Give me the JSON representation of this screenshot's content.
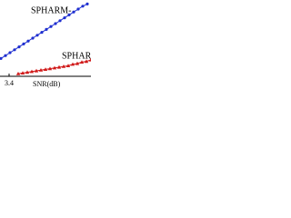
{
  "chart_data": {
    "type": "line",
    "annotations": [
      "SPHARM-",
      "SPHARM",
      "SNR(dB)"
    ],
    "xlim": [
      2.4,
      12.4
    ],
    "xticks": [
      3.4
    ],
    "ylim": [
      0,
      100
    ],
    "series": [
      {
        "name": "SPHARM-",
        "color": "#1f2fd0",
        "marker": "circle",
        "x": [
          2.5,
          3.0,
          3.5,
          4.0,
          4.5,
          5.0,
          5.5,
          6.0,
          6.5,
          7.0,
          7.5,
          8.0,
          8.5,
          9.0,
          9.5,
          10.0,
          10.5,
          11.0,
          11.5,
          12.0
        ],
        "values": [
          22,
          26,
          30,
          34,
          38,
          42,
          46,
          50,
          54,
          58,
          62,
          66,
          70,
          74,
          78,
          82,
          86,
          90,
          94,
          97
        ]
      },
      {
        "name": "SPHARM",
        "color": "#d01818",
        "marker": "triangle",
        "x": [
          4.4,
          4.9,
          5.4,
          5.9,
          6.4,
          6.9,
          7.4,
          7.9,
          8.4,
          8.9,
          9.4,
          9.9,
          10.4,
          10.9,
          11.4,
          11.9,
          12.4
        ],
        "values": [
          1,
          2,
          3,
          4,
          5,
          6,
          7,
          8,
          9,
          10,
          11,
          12,
          14,
          15,
          17,
          18,
          20
        ]
      }
    ]
  }
}
